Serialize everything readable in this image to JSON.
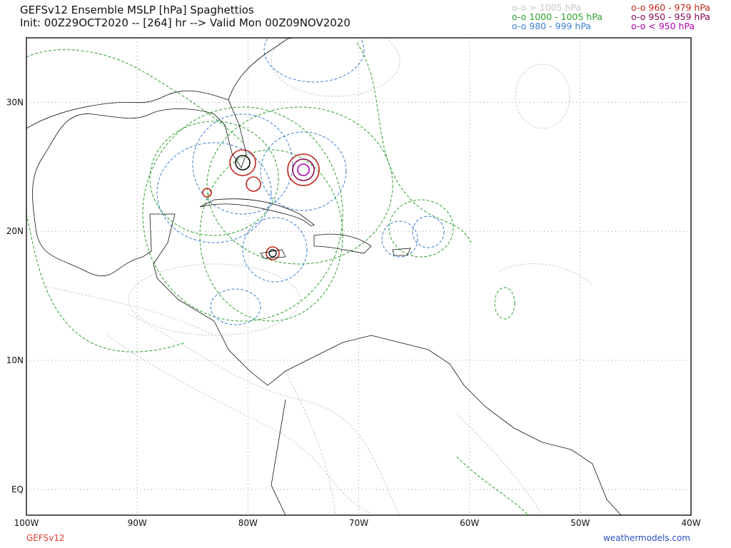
{
  "header": {
    "title": "GEFSv12 Ensemble MSLP [hPa] Spaghettios",
    "subtitle": "Init: 00Z29OCT2020 -- [264] hr --> Valid Mon 00Z09NOV2020"
  },
  "legend": [
    {
      "label": "o-o > 1005 hPa",
      "color": "#c8c8c8"
    },
    {
      "label": "o-o 1000 - 1005 hPa",
      "color": "#2ca02c"
    },
    {
      "label": "o-o 980 - 999 hPa",
      "color": "#3a7fd0"
    },
    {
      "label": "o-o 960 - 979 hPa",
      "color": "#c0281a"
    },
    {
      "label": "o-o 950 - 959 hPa",
      "color": "#8b0a50"
    },
    {
      "label": "o-o < 950 hPa",
      "color": "#b000b0"
    }
  ],
  "map": {
    "lon_range": [
      -100,
      -40
    ],
    "lat_range": [
      -2,
      35
    ],
    "lon_ticks": [
      {
        "value": -100,
        "label": "100W"
      },
      {
        "value": -90,
        "label": "90W"
      },
      {
        "value": -80,
        "label": "80W"
      },
      {
        "value": -70,
        "label": "70W"
      },
      {
        "value": -60,
        "label": "60W"
      },
      {
        "value": -50,
        "label": "50W"
      },
      {
        "value": -40,
        "label": "40W"
      }
    ],
    "lat_ticks": [
      {
        "value": 30,
        "label": "30N"
      },
      {
        "value": 20,
        "label": "20N"
      },
      {
        "value": 10,
        "label": "10N"
      },
      {
        "value": 0,
        "label": "EQ"
      }
    ]
  },
  "footer": {
    "model": "GEFSv12",
    "site": "weathermodels.com"
  }
}
